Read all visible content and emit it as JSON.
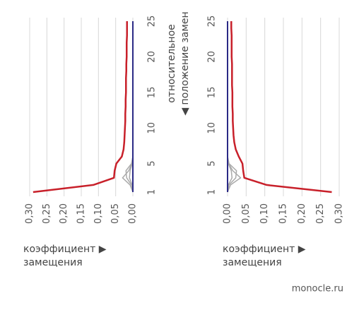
{
  "chart_data": [
    {
      "type": "line",
      "y": [
        1,
        2,
        3,
        4,
        5,
        6,
        7,
        8,
        9,
        10,
        11,
        12,
        13,
        14,
        15,
        16,
        17,
        18,
        19,
        20,
        21,
        22,
        23,
        24,
        25
      ],
      "ylim": [
        1,
        25
      ],
      "yticks": [
        1,
        5,
        10,
        15,
        20,
        25
      ],
      "xlim": [
        0.3,
        0
      ],
      "xticks": [
        {
          "value": 0.3,
          "label": "0,30"
        },
        {
          "value": 0.25,
          "label": "0,25"
        },
        {
          "value": 0.2,
          "label": "0,20"
        },
        {
          "value": 0.15,
          "label": "0,15"
        },
        {
          "value": 0.1,
          "label": "0,10"
        },
        {
          "value": 0.05,
          "label": "0,05"
        },
        {
          "value": 0,
          "label": "0,00"
        }
      ],
      "grid": true,
      "xlabel": [
        "коэффициент ▶",
        "замещения"
      ],
      "ylabel": [
        "относительное",
        "◀ положение замен"
      ],
      "series": [
        {
          "color": "#aaaaaa",
          "values": [
            0,
            0.008,
            0.03,
            0.012,
            0.003,
            0,
            0,
            0,
            0,
            0,
            0,
            0,
            0,
            0,
            0,
            0,
            0,
            0,
            0,
            0,
            0,
            0,
            0,
            0,
            0
          ]
        },
        {
          "color": "#aaaaaa",
          "values": [
            0,
            0.004,
            0.018,
            0.02,
            0.004,
            0,
            0,
            0,
            0,
            0,
            0,
            0,
            0,
            0,
            0,
            0,
            0,
            0,
            0,
            0,
            0,
            0,
            0,
            0,
            0
          ]
        },
        {
          "color": "#aaaaaa",
          "values": [
            0,
            0.002,
            0.01,
            0.008,
            0.002,
            0,
            0,
            0,
            0,
            0,
            0,
            0,
            0,
            0,
            0,
            0,
            0,
            0,
            0,
            0,
            0,
            0,
            0,
            0,
            0
          ]
        },
        {
          "color": "#2b2a86",
          "values": [
            0,
            0,
            0,
            0,
            0,
            0,
            0,
            0,
            0,
            0,
            0,
            0,
            0,
            0,
            0,
            0,
            0,
            0,
            0,
            0,
            0,
            0,
            0,
            0,
            0
          ]
        },
        {
          "color": "#c8202a",
          "values": [
            0.29,
            0.115,
            0.055,
            0.053,
            0.048,
            0.032,
            0.027,
            0.025,
            0.024,
            0.023,
            0.022,
            0.022,
            0.021,
            0.021,
            0.02,
            0.02,
            0.02,
            0.019,
            0.019,
            0.018,
            0.018,
            0.018,
            0.017,
            0.017,
            0.017
          ]
        }
      ]
    },
    {
      "type": "line",
      "y": [
        1,
        2,
        3,
        4,
        5,
        6,
        7,
        8,
        9,
        10,
        11,
        12,
        13,
        14,
        15,
        16,
        17,
        18,
        19,
        20,
        21,
        22,
        23,
        24,
        25
      ],
      "ylim": [
        1,
        25
      ],
      "yticks": [
        1,
        5,
        10,
        15,
        20,
        25
      ],
      "xlim": [
        0,
        0.3
      ],
      "xticks": [
        {
          "value": 0,
          "label": "0,00"
        },
        {
          "value": 0.05,
          "label": "0,05"
        },
        {
          "value": 0.1,
          "label": "0,10"
        },
        {
          "value": 0.15,
          "label": "0,15"
        },
        {
          "value": 0.2,
          "label": "0,20"
        },
        {
          "value": 0.25,
          "label": "0,25"
        },
        {
          "value": 0.3,
          "label": "0,30"
        }
      ],
      "grid": true,
      "xlabel": [
        "коэффициент ▶",
        "замещения"
      ],
      "series": [
        {
          "color": "#aaaaaa",
          "values": [
            0,
            0.008,
            0.035,
            0.014,
            0.003,
            0,
            0,
            0,
            0,
            0,
            0,
            0,
            0,
            0,
            0,
            0,
            0,
            0,
            0,
            0,
            0,
            0,
            0,
            0,
            0
          ]
        },
        {
          "color": "#aaaaaa",
          "values": [
            0,
            0.004,
            0.022,
            0.024,
            0.004,
            0,
            0,
            0,
            0,
            0,
            0,
            0,
            0,
            0,
            0,
            0,
            0,
            0,
            0,
            0,
            0,
            0,
            0,
            0,
            0
          ]
        },
        {
          "color": "#aaaaaa",
          "values": [
            0,
            0.002,
            0.012,
            0.01,
            0.002,
            0,
            0,
            0,
            0,
            0,
            0,
            0,
            0,
            0,
            0,
            0,
            0,
            0,
            0,
            0,
            0,
            0,
            0,
            0,
            0
          ]
        },
        {
          "color": "#2b2a86",
          "values": [
            0,
            0,
            0,
            0,
            0,
            0,
            0,
            0,
            0,
            0,
            0,
            0,
            0,
            0,
            0,
            0,
            0,
            0,
            0,
            0,
            0,
            0,
            0,
            0,
            0
          ]
        },
        {
          "color": "#c8202a",
          "values": [
            0.28,
            0.105,
            0.045,
            0.042,
            0.04,
            0.03,
            0.022,
            0.018,
            0.016,
            0.015,
            0.014,
            0.014,
            0.013,
            0.013,
            0.013,
            0.012,
            0.012,
            0.012,
            0.012,
            0.011,
            0.011,
            0.011,
            0.011,
            0.01,
            0.01
          ]
        }
      ]
    }
  ],
  "source": "monocle.ru"
}
